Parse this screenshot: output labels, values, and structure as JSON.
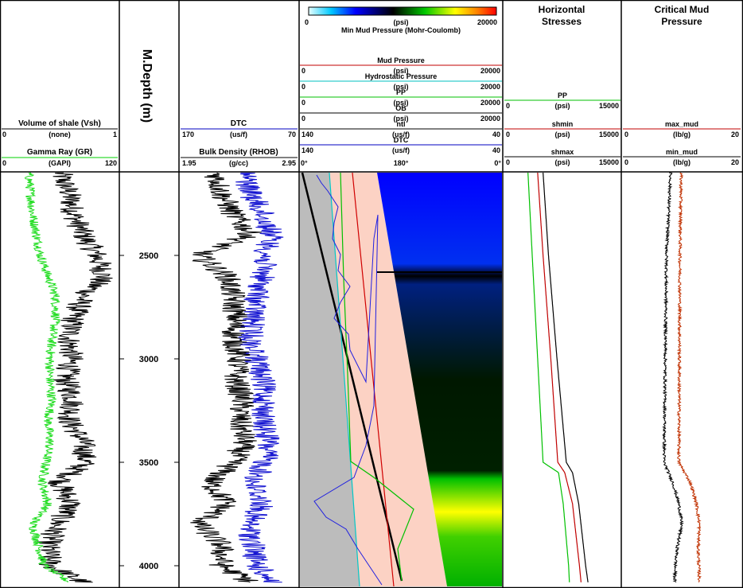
{
  "chart_data": [
    {
      "type": "line",
      "title": "Volume of shale (Vsh) / Gamma Ray (GR)",
      "tracks": [
        {
          "name": "Volume of shale (Vsh)",
          "unit": "(none)",
          "min": "0",
          "max": "1",
          "color": "#000000"
        },
        {
          "name": "Gamma Ray (GR)",
          "unit": "(GAPI)",
          "min": "0",
          "max": "120",
          "color": "#00d000"
        }
      ],
      "series": [
        {
          "name": "Vsh",
          "depth": [
            2100,
            2200,
            2300,
            2400,
            2500,
            2600,
            2700,
            2800,
            2900,
            3000,
            3100,
            3200,
            3300,
            3400,
            3500,
            3600,
            3700,
            3800,
            3900,
            4000,
            4080
          ],
          "values": [
            0.5,
            0.58,
            0.62,
            0.7,
            0.82,
            0.88,
            0.7,
            0.62,
            0.58,
            0.6,
            0.55,
            0.62,
            0.58,
            0.7,
            0.72,
            0.5,
            0.6,
            0.48,
            0.4,
            0.42,
            0.7
          ]
        },
        {
          "name": "GR",
          "depth": [
            2100,
            2200,
            2300,
            2400,
            2500,
            2600,
            2700,
            2800,
            2900,
            3000,
            3100,
            3200,
            3300,
            3400,
            3500,
            3600,
            3700,
            3800,
            3900,
            4000,
            4080
          ],
          "values": [
            28,
            30,
            32,
            36,
            40,
            48,
            56,
            56,
            52,
            50,
            50,
            52,
            48,
            50,
            46,
            42,
            48,
            32,
            38,
            44,
            70
          ]
        }
      ]
    },
    {
      "type": "axis",
      "title": "M.Depth (m)",
      "ticks": [
        "2500",
        "3000",
        "3500",
        "4000"
      ],
      "ylim": [
        2100,
        4100
      ]
    },
    {
      "type": "line",
      "title": "DTC / Bulk Density (RHOB)",
      "tracks": [
        {
          "name": "DTC",
          "unit": "(us/f)",
          "min": "170",
          "max": "70",
          "color": "#0000c0"
        },
        {
          "name": "Bulk Density (RHOB)",
          "unit": "(g/cc)",
          "min": "1.95",
          "max": "2.95",
          "color": "#000000"
        }
      ],
      "series": [
        {
          "name": "DTC",
          "depth": [
            2100,
            2200,
            2300,
            2400,
            2500,
            2600,
            2700,
            2800,
            2900,
            3000,
            3100,
            3200,
            3300,
            3400,
            3500,
            3600,
            3700,
            3800,
            3900,
            4000,
            4080
          ],
          "values": [
            115,
            110,
            100,
            92,
            98,
            100,
            105,
            108,
            110,
            105,
            100,
            98,
            100,
            95,
            98,
            108,
            100,
            112,
            108,
            105,
            90
          ]
        },
        {
          "name": "RHOB",
          "depth": [
            2100,
            2200,
            2300,
            2400,
            2500,
            2600,
            2700,
            2800,
            2900,
            3000,
            3100,
            3200,
            3300,
            3400,
            3500,
            3600,
            3700,
            3800,
            3900,
            4000,
            4080
          ],
          "values": [
            2.25,
            2.3,
            2.4,
            2.55,
            2.1,
            2.35,
            2.4,
            2.42,
            2.4,
            2.45,
            2.42,
            2.48,
            2.45,
            2.5,
            2.4,
            2.2,
            2.35,
            2.1,
            2.3,
            2.3,
            2.55
          ]
        }
      ]
    },
    {
      "type": "heatmap",
      "title": "Min Mud Pressure (Mohr-Coulomb)",
      "colorbar": {
        "unit": "(psi)",
        "min": "0",
        "max": "20000"
      },
      "tracks": [
        {
          "name": "Mud Pressure",
          "unit": "(psi)",
          "min": "0",
          "max": "20000",
          "color": "#c00000"
        },
        {
          "name": "Hydrostatic Pressure",
          "unit": "(psi)",
          "min": "0",
          "max": "20000",
          "color": "#00c0c0"
        },
        {
          "name": "PP",
          "unit": "(psi)",
          "min": "0",
          "max": "20000",
          "color": "#00c000"
        },
        {
          "name": "OB",
          "unit": "(psi)",
          "min": "0",
          "max": "20000",
          "color": "#000000"
        },
        {
          "name": "ntl",
          "unit": "(us/f)",
          "min": "140",
          "max": "40",
          "color": "#000000"
        },
        {
          "name": "DTC",
          "unit": "(us/f)",
          "min": "140",
          "max": "40",
          "color": "#0000c0"
        }
      ],
      "azimuth_axis": {
        "left": "0°",
        "mid": "180°",
        "right": "0°"
      }
    },
    {
      "type": "line",
      "title": "Horizontal Stresses",
      "tracks": [
        {
          "name": "PP",
          "unit": "(psi)",
          "min": "0",
          "max": "15000",
          "color": "#00c000"
        },
        {
          "name": "shmin",
          "unit": "(psi)",
          "min": "0",
          "max": "15000",
          "color": "#c00000"
        },
        {
          "name": "shmax",
          "unit": "(psi)",
          "min": "0",
          "max": "15000",
          "color": "#000000"
        }
      ],
      "series": [
        {
          "name": "PP",
          "depth": [
            2100,
            2500,
            3000,
            3500,
            3550,
            3700,
            4000,
            4080
          ],
          "values": [
            3050,
            3600,
            4300,
            5000,
            7000,
            7600,
            8300,
            8400
          ]
        },
        {
          "name": "shmin",
          "depth": [
            2100,
            2500,
            3000,
            3500,
            3550,
            3700,
            4000,
            4080
          ],
          "values": [
            4300,
            5000,
            6000,
            6900,
            7800,
            8800,
            9700,
            9900
          ]
        },
        {
          "name": "shmax",
          "depth": [
            2100,
            2500,
            3000,
            3500,
            3550,
            3700,
            4000,
            4080
          ],
          "values": [
            5000,
            5700,
            6800,
            8000,
            8800,
            9600,
            10500,
            10800
          ]
        }
      ]
    },
    {
      "type": "line",
      "title": "Critical Mud Pressure",
      "tracks": [
        {
          "name": "max_mud",
          "unit": "(lb/g)",
          "min": "0",
          "max": "20",
          "color": "#c00000"
        },
        {
          "name": "min_mud",
          "unit": "(lb/g)",
          "min": "0",
          "max": "20",
          "color": "#000000"
        }
      ],
      "series": [
        {
          "name": "max_mud",
          "depth": [
            2100,
            2500,
            3000,
            3500,
            3600,
            3700,
            3800,
            3900,
            4000,
            4080
          ],
          "values": [
            9.9,
            9.7,
            9.6,
            9.5,
            11.5,
            12.5,
            13.0,
            12.8,
            12.9,
            13.0
          ]
        },
        {
          "name": "min_mud",
          "depth": [
            2100,
            2500,
            3000,
            3500,
            3600,
            3700,
            3800,
            3900,
            4000,
            4080
          ],
          "values": [
            8.1,
            7.4,
            7.2,
            7.0,
            8.5,
            9.5,
            10.0,
            9.3,
            8.9,
            8.8
          ]
        }
      ]
    }
  ]
}
